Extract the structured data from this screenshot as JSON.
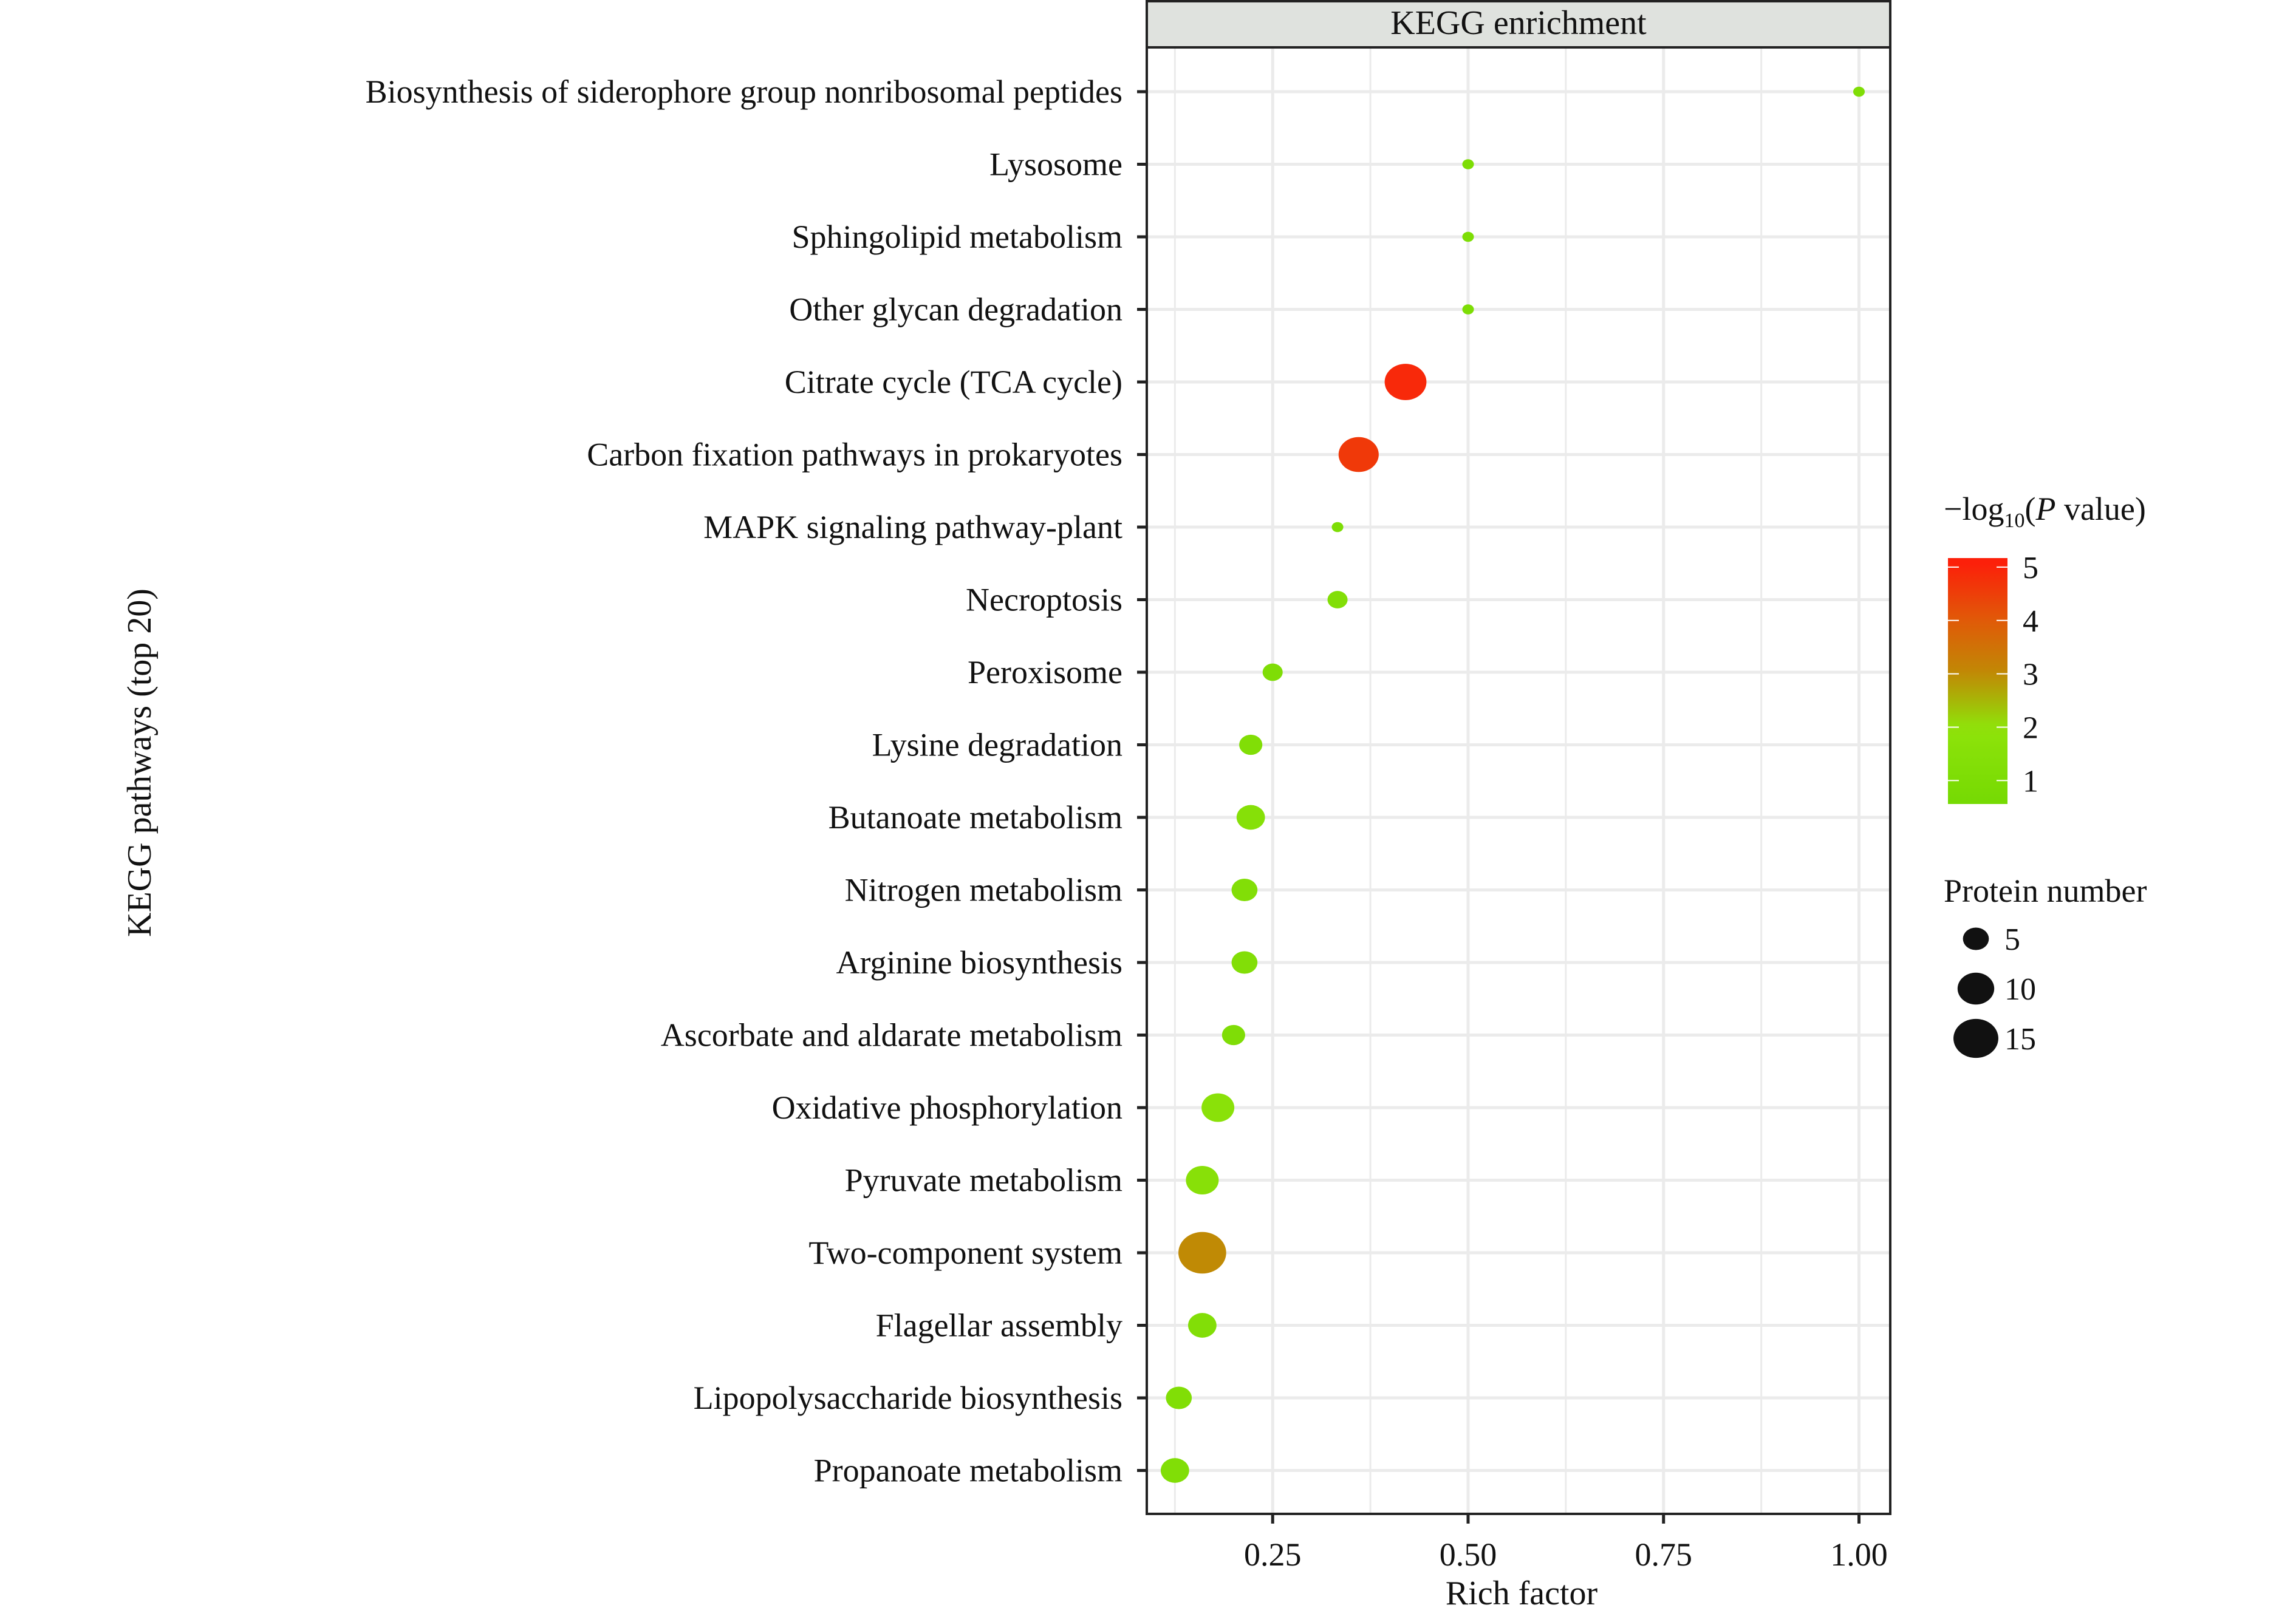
{
  "chart_data": {
    "type": "scatter",
    "title": "KEGG enrichment",
    "xlabel": "Rich factor",
    "ylabel": "KEGG pathways (top 20)",
    "xlim": [
      0.089,
      1.04
    ],
    "xticks": [
      0.25,
      0.5,
      0.75,
      1.0
    ],
    "xtick_labels": [
      "0.25",
      "0.50",
      "0.75",
      "1.00"
    ],
    "grid": true,
    "points": [
      {
        "pathway": "Biosynthesis of siderophore group nonribosomal peptides",
        "rich_factor": 1.0,
        "count": 1,
        "neglog10p": 1.1
      },
      {
        "pathway": "Lysosome",
        "rich_factor": 0.5,
        "count": 1,
        "neglog10p": 1.0
      },
      {
        "pathway": "Sphingolipid metabolism",
        "rich_factor": 0.5,
        "count": 1,
        "neglog10p": 1.0
      },
      {
        "pathway": "Other glycan degradation",
        "rich_factor": 0.5,
        "count": 1,
        "neglog10p": 1.0
      },
      {
        "pathway": "Citrate cycle (TCA cycle)",
        "rich_factor": 0.42,
        "count": 13,
        "neglog10p": 4.9
      },
      {
        "pathway": "Carbon fixation pathways in prokaryotes",
        "rich_factor": 0.36,
        "count": 12,
        "neglog10p": 4.6
      },
      {
        "pathway": "MAPK signaling pathway-plant",
        "rich_factor": 0.333,
        "count": 1,
        "neglog10p": 1.0
      },
      {
        "pathway": "Necroptosis",
        "rich_factor": 0.333,
        "count": 3,
        "neglog10p": 1.3
      },
      {
        "pathway": "Peroxisome",
        "rich_factor": 0.25,
        "count": 3,
        "neglog10p": 1.1
      },
      {
        "pathway": "Lysine degradation",
        "rich_factor": 0.222,
        "count": 4,
        "neglog10p": 1.2
      },
      {
        "pathway": "Butanoate metabolism",
        "rich_factor": 0.222,
        "count": 6,
        "neglog10p": 1.5
      },
      {
        "pathway": "Nitrogen metabolism",
        "rich_factor": 0.214,
        "count": 5,
        "neglog10p": 1.3
      },
      {
        "pathway": "Arginine biosynthesis",
        "rich_factor": 0.214,
        "count": 5,
        "neglog10p": 1.3
      },
      {
        "pathway": "Ascorbate and aldarate metabolism",
        "rich_factor": 0.2,
        "count": 4,
        "neglog10p": 1.1
      },
      {
        "pathway": "Oxidative phosphorylation",
        "rich_factor": 0.18,
        "count": 8,
        "neglog10p": 1.7
      },
      {
        "pathway": "Pyruvate metabolism",
        "rich_factor": 0.16,
        "count": 8,
        "neglog10p": 1.6
      },
      {
        "pathway": "Two-component system",
        "rich_factor": 0.16,
        "count": 17,
        "neglog10p": 3.0
      },
      {
        "pathway": "Flagellar assembly",
        "rich_factor": 0.16,
        "count": 6,
        "neglog10p": 1.3
      },
      {
        "pathway": "Lipopolysaccharide biosynthesis",
        "rich_factor": 0.13,
        "count": 5,
        "neglog10p": 1.2
      },
      {
        "pathway": "Propanoate metabolism",
        "rich_factor": 0.125,
        "count": 6,
        "neglog10p": 1.2
      }
    ],
    "color_legend": {
      "title_prefix": "−log",
      "title_sub": "10",
      "title_open": "(",
      "title_italic": "P",
      "title_suffix": " value)",
      "range": [
        0.56,
        5.17
      ],
      "ticks": [
        5,
        4,
        3,
        2,
        1
      ],
      "colors": {
        "low": "#6bd600",
        "mid_low": "#8fe30a",
        "mid": "#c08a05",
        "mid_high": "#e05a08",
        "high": "#ff1a0a"
      }
    },
    "size_legend": {
      "title": "Protein number",
      "values": [
        5,
        10,
        15
      ]
    },
    "strip_color": "#dfe2de",
    "grid_color": "#ebebeb"
  }
}
